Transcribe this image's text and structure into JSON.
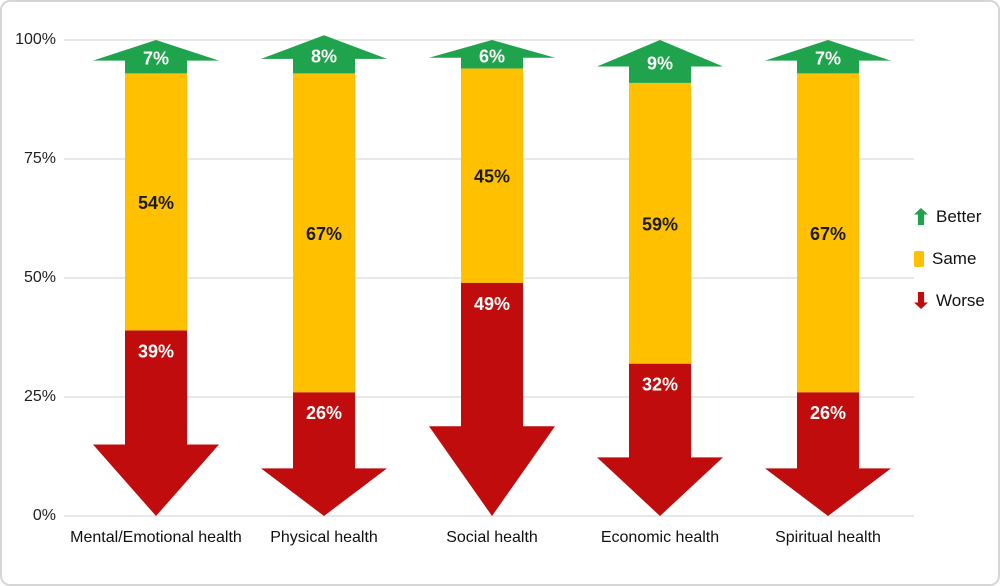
{
  "figure": {
    "background": "#ffffff",
    "border_color": "#d6d6d6"
  },
  "chart_data": {
    "type": "bar",
    "variant": "stacked-arrow-columns",
    "title": "",
    "xlabel": "",
    "ylabel": "",
    "categories": [
      "Mental/Emotional health",
      "Physical health",
      "Social health",
      "Economic health",
      "Spiritual health"
    ],
    "series": [
      {
        "name": "Better",
        "shape": "arrow-up",
        "color": "#1FA34C",
        "label_color": "#ffffff",
        "values": [
          7,
          8,
          6,
          9,
          7
        ]
      },
      {
        "name": "Same",
        "shape": "rect",
        "color": "#FFC000",
        "label_color": "#1b1b1b",
        "values": [
          54,
          67,
          45,
          59,
          67
        ]
      },
      {
        "name": "Worse",
        "shape": "arrow-down",
        "color": "#C00C0C",
        "label_color": "#ffffff",
        "values": [
          39,
          26,
          49,
          32,
          26
        ]
      }
    ],
    "stack_bottom_to_top": [
      "Worse",
      "Same",
      "Better"
    ],
    "value_suffix": "%",
    "y_axis": {
      "min": 0,
      "max": 100,
      "tick_values": [
        0,
        25,
        50,
        75,
        100
      ],
      "tick_labels": [
        "0%",
        "25%",
        "50%",
        "75%",
        "100%"
      ],
      "grid": true,
      "grid_color": "#d9d9d9"
    },
    "legend": {
      "position": "right",
      "entries": [
        {
          "label": "Better",
          "icon": "arrow-up-icon"
        },
        {
          "label": "Same",
          "icon": "square-icon"
        },
        {
          "label": "Worse",
          "icon": "arrow-down-icon"
        }
      ]
    }
  }
}
